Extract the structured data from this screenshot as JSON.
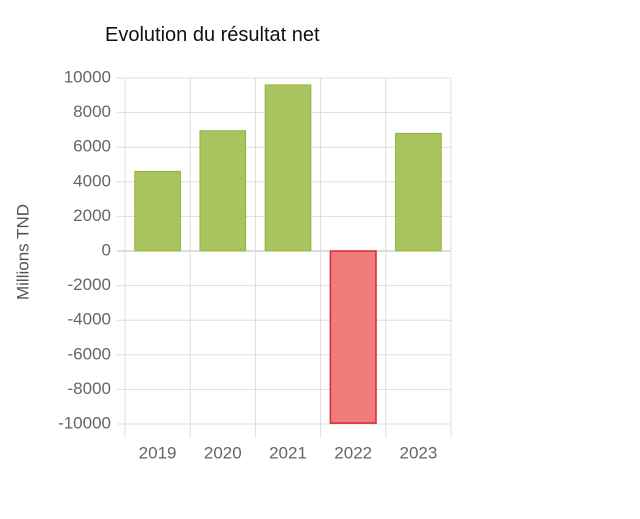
{
  "chart_data": {
    "type": "bar",
    "title": "Evolution du résultat net",
    "xlabel": "",
    "ylabel": "Millions TND",
    "categories": [
      "2019",
      "2020",
      "2021",
      "2022",
      "2023"
    ],
    "values": [
      4600,
      6950,
      9600,
      -9950,
      6800
    ],
    "ylim": [
      -10000,
      10000
    ],
    "yticks": [
      10000,
      8000,
      6000,
      4000,
      2000,
      0,
      -2000,
      -4000,
      -6000,
      -8000,
      -10000
    ],
    "grid": true,
    "legend": "none",
    "colors": {
      "positive_fill": "#a9c45f",
      "positive_stroke": "#8db33a",
      "negative_fill": "#f07c7c",
      "negative_stroke": "#d42a2a",
      "grid": "#dddddd",
      "zero_line": "#bbbbbb"
    }
  }
}
